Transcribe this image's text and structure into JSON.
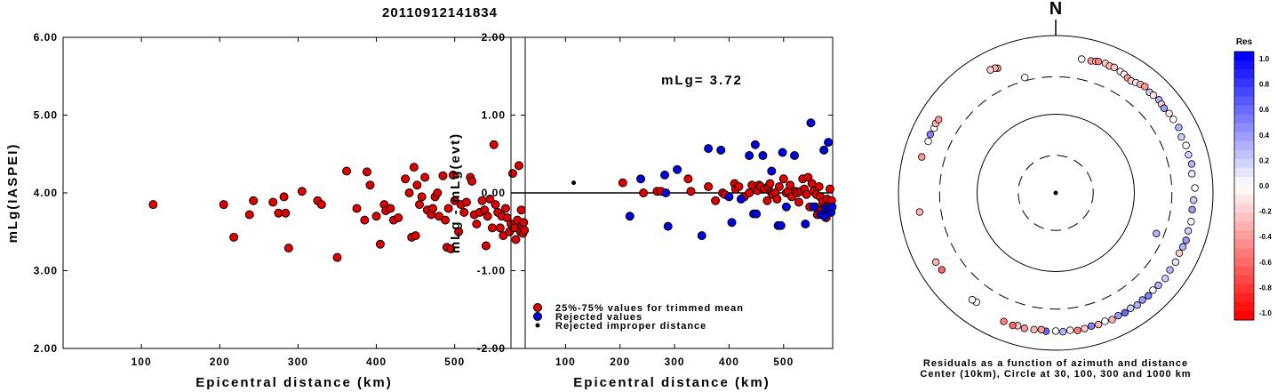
{
  "page_title": "20110912141834",
  "chart_data": [
    {
      "type": "scatter",
      "name": "mlg-vs-distance",
      "xlabel": "Epicentral distance (km)",
      "ylabel": "mLg(IASPEI)",
      "xlim": [
        0,
        590
      ],
      "ylim": [
        2.0,
        6.0
      ],
      "xticks": [
        100,
        200,
        300,
        400,
        500
      ],
      "yticks": [
        "2.00",
        "3.00",
        "4.00",
        "5.00",
        "6.00"
      ],
      "yticks_values": [
        2,
        3,
        4,
        5,
        6
      ],
      "marker_color": "#e00000",
      "points": [
        [
          115,
          3.85
        ],
        [
          205,
          3.85
        ],
        [
          218,
          3.43
        ],
        [
          238,
          3.72
        ],
        [
          243,
          3.9
        ],
        [
          268,
          3.88
        ],
        [
          275,
          3.74
        ],
        [
          282,
          3.95
        ],
        [
          284,
          3.74
        ],
        [
          288,
          3.29
        ],
        [
          305,
          4.02
        ],
        [
          325,
          3.9
        ],
        [
          330,
          3.85
        ],
        [
          350,
          3.17
        ],
        [
          362,
          4.28
        ],
        [
          375,
          3.8
        ],
        [
          385,
          3.65
        ],
        [
          388,
          4.27
        ],
        [
          392,
          4.1
        ],
        [
          400,
          3.7
        ],
        [
          405,
          3.34
        ],
        [
          410,
          3.85
        ],
        [
          412,
          3.77
        ],
        [
          418,
          3.8
        ],
        [
          422,
          3.65
        ],
        [
          428,
          3.68
        ],
        [
          437,
          4.18
        ],
        [
          442,
          4.0
        ],
        [
          445,
          3.43
        ],
        [
          448,
          4.33
        ],
        [
          450,
          3.45
        ],
        [
          452,
          4.1
        ],
        [
          455,
          3.85
        ],
        [
          458,
          3.95
        ],
        [
          462,
          4.2
        ],
        [
          465,
          3.78
        ],
        [
          470,
          3.72
        ],
        [
          472,
          3.8
        ],
        [
          475,
          3.95
        ],
        [
          478,
          4.0
        ],
        [
          480,
          3.7
        ],
        [
          485,
          4.22
        ],
        [
          488,
          3.65
        ],
        [
          490,
          3.3
        ],
        [
          492,
          3.8
        ],
        [
          495,
          3.28
        ],
        [
          498,
          4.23
        ],
        [
          500,
          3.9
        ],
        [
          505,
          3.5
        ],
        [
          508,
          3.85
        ],
        [
          512,
          3.75
        ],
        [
          515,
          3.88
        ],
        [
          520,
          4.2
        ],
        [
          522,
          4.15
        ],
        [
          525,
          3.72
        ],
        [
          528,
          3.6
        ],
        [
          532,
          3.75
        ],
        [
          535,
          3.9
        ],
        [
          538,
          3.78
        ],
        [
          540,
          3.32
        ],
        [
          542,
          3.7
        ],
        [
          545,
          3.92
        ],
        [
          548,
          3.55
        ],
        [
          550,
          4.62
        ],
        [
          552,
          3.85
        ],
        [
          555,
          3.75
        ],
        [
          558,
          3.55
        ],
        [
          560,
          3.7
        ],
        [
          562,
          3.45
        ],
        [
          565,
          3.8
        ],
        [
          567,
          3.68
        ],
        [
          570,
          3.5
        ],
        [
          572,
          3.6
        ],
        [
          574,
          4.25
        ],
        [
          576,
          3.55
        ],
        [
          578,
          3.4
        ],
        [
          580,
          3.65
        ],
        [
          582,
          4.35
        ],
        [
          584,
          3.5
        ],
        [
          585,
          3.78
        ],
        [
          586,
          3.58
        ],
        [
          587,
          3.48
        ],
        [
          588,
          3.62
        ],
        [
          589,
          3.52
        ]
      ]
    },
    {
      "type": "scatter",
      "name": "residual-vs-distance",
      "xlabel": "Epicentral distance (km)",
      "ylabel": "mLg - mLg(evt)",
      "xlim": [
        0,
        590
      ],
      "ylim": [
        -2.0,
        2.0
      ],
      "xticks": [
        100,
        200,
        300,
        400,
        500
      ],
      "yticks": [
        "-2.00",
        "-1.00",
        "0.00",
        "1.00",
        "2.00"
      ],
      "yticks_values": [
        -2,
        -1,
        0,
        1,
        2
      ],
      "annotation": "mLg= 3.72",
      "zero_line": true,
      "series": [
        {
          "name": "25%-75% values for trimmed mean",
          "color": "#e00000",
          "points": [
            [
              205,
              0.13
            ],
            [
              243,
              0.0
            ],
            [
              268,
              0.02
            ],
            [
              275,
              0.02
            ],
            [
              325,
              0.18
            ],
            [
              330,
              0.02
            ],
            [
              362,
              0.08
            ],
            [
              375,
              -0.1
            ],
            [
              388,
              0.0
            ],
            [
              392,
              -0.02
            ],
            [
              410,
              0.12
            ],
            [
              412,
              0.05
            ],
            [
              418,
              0.08
            ],
            [
              428,
              -0.05
            ],
            [
              437,
              0.0
            ],
            [
              442,
              0.1
            ],
            [
              452,
              0.03
            ],
            [
              455,
              0.1
            ],
            [
              458,
              0.08
            ],
            [
              465,
              0.05
            ],
            [
              470,
              -0.1
            ],
            [
              472,
              0.08
            ],
            [
              475,
              0.12
            ],
            [
              478,
              0.0
            ],
            [
              480,
              -0.02
            ],
            [
              485,
              0.0
            ],
            [
              488,
              -0.08
            ],
            [
              492,
              0.08
            ],
            [
              500,
              0.18
            ],
            [
              505,
              0.0
            ],
            [
              508,
              0.02
            ],
            [
              512,
              0.1
            ],
            [
              515,
              -0.05
            ],
            [
              522,
              0.02
            ],
            [
              525,
              0.0
            ],
            [
              528,
              -0.12
            ],
            [
              532,
              0.02
            ],
            [
              535,
              0.18
            ],
            [
              538,
              0.05
            ],
            [
              542,
              -0.02
            ],
            [
              545,
              0.2
            ],
            [
              548,
              -0.18
            ],
            [
              552,
              0.12
            ],
            [
              555,
              0.02
            ],
            [
              558,
              -0.18
            ],
            [
              560,
              -0.02
            ],
            [
              562,
              -0.28
            ],
            [
              565,
              0.08
            ],
            [
              567,
              -0.05
            ],
            [
              570,
              -0.22
            ],
            [
              572,
              -0.12
            ],
            [
              576,
              -0.18
            ],
            [
              578,
              -0.32
            ],
            [
              580,
              -0.08
            ],
            [
              584,
              -0.22
            ],
            [
              585,
              0.05
            ],
            [
              586,
              -0.15
            ],
            [
              588,
              -0.1
            ]
          ]
        },
        {
          "name": "Rejected values",
          "color": "#0000e0",
          "points": [
            [
              218,
              -0.3
            ],
            [
              238,
              0.18
            ],
            [
              282,
              0.23
            ],
            [
              284,
              0.0
            ],
            [
              288,
              -0.43
            ],
            [
              305,
              0.3
            ],
            [
              350,
              -0.55
            ],
            [
              362,
              0.57
            ],
            [
              385,
              0.55
            ],
            [
              400,
              -0.05
            ],
            [
              405,
              -0.38
            ],
            [
              422,
              -0.08
            ],
            [
              437,
              0.48
            ],
            [
              445,
              -0.27
            ],
            [
              448,
              0.62
            ],
            [
              450,
              -0.27
            ],
            [
              462,
              0.48
            ],
            [
              478,
              0.28
            ],
            [
              490,
              -0.42
            ],
            [
              495,
              -0.42
            ],
            [
              498,
              0.52
            ],
            [
              505,
              -0.18
            ],
            [
              520,
              0.48
            ],
            [
              540,
              -0.4
            ],
            [
              550,
              0.9
            ],
            [
              555,
              -0.18
            ],
            [
              568,
              -0.28
            ],
            [
              574,
              0.55
            ],
            [
              575,
              -0.3
            ],
            [
              577,
              -0.2
            ],
            [
              582,
              0.65
            ],
            [
              583,
              -0.22
            ],
            [
              587,
              -0.25
            ],
            [
              589,
              -0.18
            ]
          ]
        },
        {
          "name": "Rejected improper distance",
          "color": "#000000",
          "points": [
            [
              115,
              0.13
            ]
          ]
        }
      ]
    },
    {
      "type": "scatter",
      "name": "azimuthal-residual-map",
      "north_label": "N",
      "caption_line1": "Residuals as a function of azimuth and distance",
      "caption_line2": "Center (10km), Circle at 30, 100, 300 and 1000 km",
      "rings_km": [
        30,
        100,
        300,
        1000
      ],
      "colorbar_title": "Res",
      "colorbar_ticks": [
        "1.0",
        "0.8",
        "0.6",
        "0.4",
        "0.2",
        "0.0",
        "-0.2",
        "-0.4",
        "-0.6",
        "-0.8",
        "-1.0"
      ],
      "colorbar_values": [
        1.0,
        0.8,
        0.6,
        0.4,
        0.2,
        0.0,
        -0.2,
        -0.4,
        -0.6,
        -0.8,
        -1.0
      ],
      "stations_az_dist_res": [
        [
          335,
          560,
          -0.4
        ],
        [
          334,
          580,
          -0.3
        ],
        [
          332,
          590,
          -0.2
        ],
        [
          345,
          330,
          0.0
        ],
        [
          11,
          540,
          0.0
        ],
        [
          15,
          545,
          -0.4
        ],
        [
          17,
          560,
          -0.3
        ],
        [
          18,
          570,
          -0.5
        ],
        [
          21,
          580,
          -0.2
        ],
        [
          23,
          565,
          -0.3
        ],
        [
          25,
          575,
          -0.2
        ],
        [
          28,
          560,
          -0.1
        ],
        [
          30,
          550,
          0.0
        ],
        [
          32,
          530,
          -0.4
        ],
        [
          34,
          520,
          -0.2
        ],
        [
          36,
          540,
          0.1
        ],
        [
          38,
          560,
          -0.3
        ],
        [
          40,
          580,
          -0.4
        ],
        [
          43,
          560,
          0.2
        ],
        [
          45,
          570,
          -0.1
        ],
        [
          48,
          585,
          0.3
        ],
        [
          50,
          570,
          -0.2
        ],
        [
          52,
          560,
          0.4
        ],
        [
          55,
          575,
          -0.1
        ],
        [
          58,
          580,
          0.0
        ],
        [
          62,
          590,
          0.3
        ],
        [
          66,
          560,
          0.2
        ],
        [
          70,
          580,
          0.0
        ],
        [
          74,
          570,
          0.2
        ],
        [
          78,
          585,
          0.3
        ],
        [
          82,
          560,
          0.1
        ],
        [
          88,
          590,
          0.0
        ],
        [
          93,
          570,
          0.2
        ],
        [
          97,
          560,
          0.4
        ],
        [
          102,
          575,
          0.0
        ],
        [
          106,
          565,
          0.2
        ],
        [
          110,
          580,
          0.4
        ],
        [
          113,
          570,
          0.3
        ],
        [
          116,
          560,
          -0.2
        ],
        [
          120,
          575,
          0.1
        ],
        [
          124,
          565,
          0.3
        ],
        [
          128,
          585,
          0.2
        ],
        [
          132,
          570,
          0.3
        ],
        [
          135,
          560,
          0.0
        ],
        [
          138,
          575,
          0.5
        ],
        [
          141,
          565,
          0.4
        ],
        [
          144,
          580,
          0.3
        ],
        [
          147,
          560,
          0.2
        ],
        [
          150,
          575,
          0.6
        ],
        [
          153,
          565,
          0.4
        ],
        [
          156,
          580,
          -0.3
        ],
        [
          159,
          560,
          0.0
        ],
        [
          162,
          575,
          -0.3
        ],
        [
          165,
          565,
          0.5
        ],
        [
          168,
          580,
          -0.2
        ],
        [
          171,
          590,
          -0.5
        ],
        [
          174,
          570,
          -0.1
        ],
        [
          177,
          585,
          0.3
        ],
        [
          180,
          570,
          0.0
        ],
        [
          184,
          580,
          0.6
        ],
        [
          186,
          560,
          -0.4
        ],
        [
          189,
          575,
          -0.3
        ],
        [
          193,
          585,
          -0.4
        ],
        [
          196,
          570,
          -0.2
        ],
        [
          198,
          590,
          -0.6
        ],
        [
          202,
          580,
          -0.5
        ],
        [
          216,
          520,
          0.0
        ],
        [
          218,
          530,
          0.0
        ],
        [
          236,
          560,
          -0.6
        ],
        [
          240,
          575,
          -0.3
        ],
        [
          262,
          560,
          -0.3
        ],
        [
          285,
          580,
          -0.4
        ],
        [
          292,
          560,
          0.0
        ],
        [
          295,
          575,
          0.5
        ],
        [
          298,
          565,
          0.0
        ],
        [
          300,
          580,
          -0.3
        ],
        [
          302,
          570,
          -0.4
        ],
        [
          112,
          240,
          0.3
        ]
      ]
    }
  ]
}
